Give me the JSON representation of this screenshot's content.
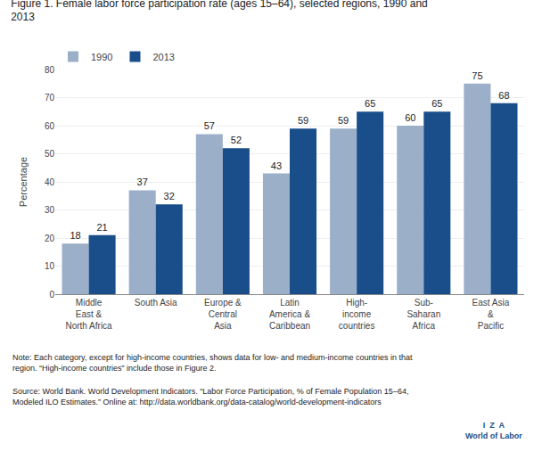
{
  "chart_data": {
    "type": "bar",
    "title": "Figure 1. Female labor force participation rate (ages 15–64), selected regions, 1990 and\n2013",
    "y_label": "Percentage",
    "categories": [
      "Middle\nEast &\nNorth Africa",
      "South Asia",
      "Europe &\nCentral\nAsia",
      "Latin\nAmerica &\nCaribbean",
      "High-\nincome\ncountries",
      "Sub-\nSaharan\nAfrica",
      "East Asia\n&\nPacific"
    ],
    "series": [
      {
        "name": "1990",
        "color": "#9BAFC9",
        "values": [
          18,
          37,
          57,
          43,
          59,
          60,
          75
        ]
      },
      {
        "name": "2013",
        "color": "#1A4E8A",
        "values": [
          21,
          32,
          52,
          59,
          65,
          65,
          68
        ]
      }
    ],
    "ylim": [
      0,
      80
    ],
    "yticks": [
      0,
      10,
      20,
      30,
      40,
      50,
      60,
      70,
      80
    ],
    "grid": true,
    "legend": "upper left",
    "data_labels": true,
    "annotations": [
      "Note: Each category, except for high-income countries, shows data for low- and medium-income countries in that\nregion. “High-income countries” include those in Figure 2.",
      "Source: World Bank. World Development Indicators. “Labor Force Participation, % of Female Population 15–64,\nModeled ILO Estimates.” Online at: http://data.worldbank.org/data-catalog/world-development-indicators",
      "I  Z  A\nWorld of Labor"
    ]
  }
}
